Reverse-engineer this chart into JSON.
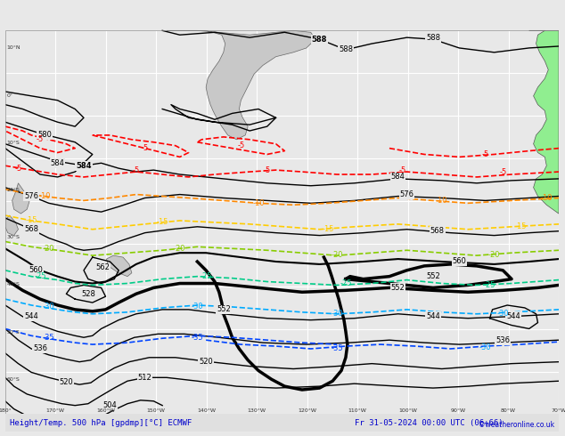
{
  "title_left": "Height/Temp. 500 hPa [gpdmp][°C] ECMWF",
  "title_right": "Fr 31-05-2024 00:00 UTC (06+66)",
  "copyright": "©weatheronline.co.uk",
  "bg_color": "#e8e8e8",
  "land_color": "#d0d0d0",
  "grid_color": "#ffffff",
  "border_color": "#aaaaaa",
  "height_contour_color": "#000000",
  "height_contour_bold_color": "#000000",
  "temp_colors": {
    "minus5": "#ff0000",
    "minus10": "#ff8800",
    "minus15": "#ffcc00",
    "minus20": "#88cc00",
    "minus25": "#00cc88",
    "minus30": "#00aaff",
    "minus35": "#0044ff"
  },
  "font_size_title": 8,
  "font_size_labels": 6
}
